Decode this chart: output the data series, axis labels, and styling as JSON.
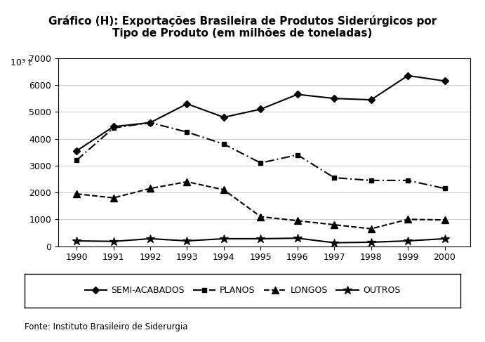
{
  "title": "Gráfico (H): Exportações Brasileira de Produtos Siderúrgicos por\nTipo de Produto (em milhões de toneladas)",
  "ylabel": "10³ t",
  "fonte": "Fonte: Instituto Brasileiro de Siderurgia",
  "years": [
    1990,
    1991,
    1992,
    1993,
    1994,
    1995,
    1996,
    1997,
    1998,
    1999,
    2000
  ],
  "semi_acabados": [
    3550,
    4450,
    4600,
    5300,
    4800,
    5100,
    5650,
    5500,
    5450,
    6350,
    6150
  ],
  "planos": [
    3200,
    4400,
    4600,
    4250,
    3800,
    3100,
    3400,
    2550,
    2450,
    2450,
    2150
  ],
  "longos": [
    1950,
    1800,
    2150,
    2400,
    2100,
    1100,
    950,
    800,
    650,
    1000,
    980
  ],
  "outros": [
    200,
    180,
    280,
    200,
    280,
    280,
    300,
    130,
    150,
    200,
    280
  ],
  "ylim": [
    0,
    7000
  ],
  "yticks": [
    0,
    1000,
    2000,
    3000,
    4000,
    5000,
    6000,
    7000
  ],
  "title_fontsize": 11,
  "legend_fontsize": 9,
  "tick_fontsize": 9,
  "ylabel_fontsize": 9
}
